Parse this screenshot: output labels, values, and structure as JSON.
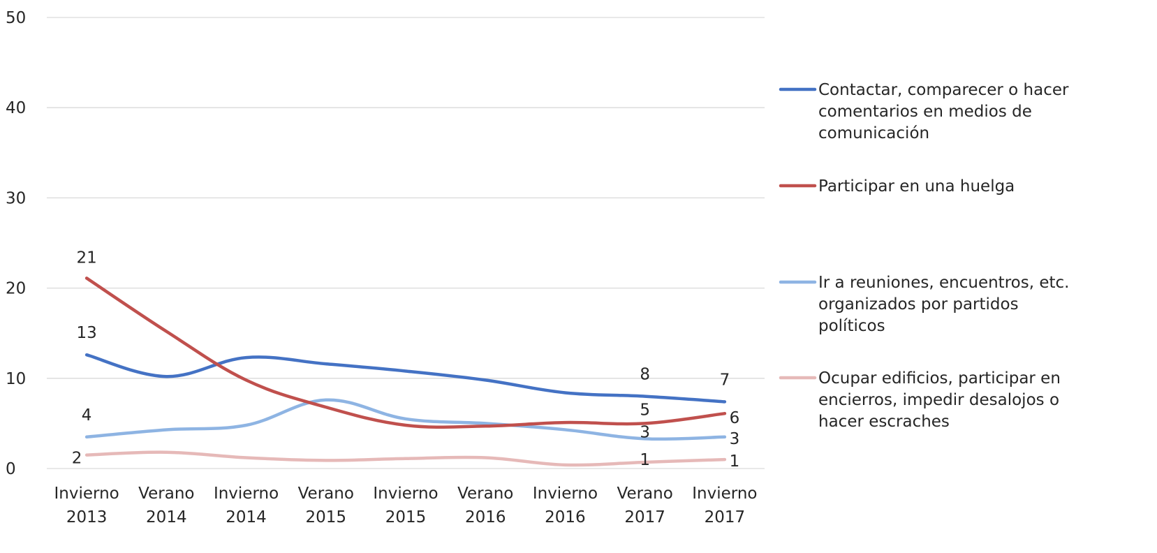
{
  "chart_data": {
    "type": "line",
    "title": "",
    "xlabel": "",
    "ylabel": "",
    "ylim": [
      0,
      50
    ],
    "yticks": [
      0,
      10,
      20,
      30,
      40,
      50
    ],
    "grid": true,
    "legend_position": "right",
    "categories": [
      [
        "Invierno",
        "2013"
      ],
      [
        "Verano",
        "2014"
      ],
      [
        "Invierno",
        "2014"
      ],
      [
        "Verano",
        "2015"
      ],
      [
        "Invierno",
        "2015"
      ],
      [
        "Verano",
        "2016"
      ],
      [
        "Invierno",
        "2016"
      ],
      [
        "Verano",
        "2017"
      ],
      [
        "Invierno",
        "2017"
      ]
    ],
    "series": [
      {
        "name": "Contactar, comparecer o hacer comentarios en  medios de comunicación",
        "legend_lines": [
          "Contactar, comparecer o hacer",
          "comentarios en  medios de",
          "comunicación"
        ],
        "color": "#4472C4",
        "values": [
          12.6,
          10.2,
          12.3,
          11.6,
          10.8,
          9.8,
          8.4,
          8.0,
          7.4
        ],
        "labels": [
          "13",
          null,
          null,
          null,
          null,
          null,
          null,
          "8",
          "7"
        ]
      },
      {
        "name": "Participar en una huelga",
        "legend_lines": [
          "Participar en una huelga"
        ],
        "color": "#C0504D",
        "values": [
          21.1,
          15.2,
          9.8,
          6.8,
          4.8,
          4.7,
          5.1,
          5.0,
          6.1
        ],
        "labels": [
          "21",
          null,
          null,
          null,
          null,
          null,
          null,
          "5",
          "6"
        ]
      },
      {
        "name": "Ir a reuniones, encuentros, etc. organizados por partidos políticos",
        "legend_lines": [
          "Ir a reuniones, encuentros, etc.",
          "organizados por partidos",
          "políticos"
        ],
        "color": "#8EB4E3",
        "values": [
          3.5,
          4.3,
          4.8,
          7.6,
          5.5,
          5.0,
          4.3,
          3.3,
          3.5
        ],
        "labels": [
          "4",
          null,
          null,
          null,
          null,
          null,
          null,
          "3",
          "3"
        ]
      },
      {
        "name": "Ocupar edificios, participar en encierros, impedir desalojos o hacer escraches",
        "legend_lines": [
          "Ocupar edificios, participar en",
          "encierros, impedir desalojos o",
          "hacer escraches"
        ],
        "color": "#E6B9B8",
        "values": [
          1.5,
          1.8,
          1.2,
          0.9,
          1.1,
          1.2,
          0.4,
          0.7,
          1.0
        ],
        "labels": [
          "2",
          null,
          null,
          null,
          null,
          null,
          null,
          "1",
          "1"
        ]
      }
    ]
  }
}
